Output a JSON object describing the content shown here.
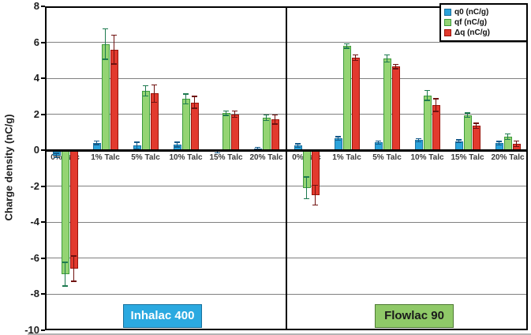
{
  "chart_data": {
    "type": "bar",
    "title": "",
    "ylabel": "Charge density (nC/g)",
    "ylim": [
      -10,
      8
    ],
    "yticks": [
      8,
      6,
      4,
      2,
      0,
      -2,
      -4,
      -6,
      -8,
      -10
    ],
    "grid": true,
    "legend_position": "top-right-inside",
    "categories": [
      "0% Talc",
      "1% Talc",
      "5% Talc",
      "10% Talc",
      "15% Talc",
      "20% Talc"
    ],
    "series_meta": [
      {
        "key": "q0",
        "name": "q0 (nC/g)",
        "color": "#2BA3DB",
        "border_color": "#1A6F9E",
        "error_color": "#155A8A"
      },
      {
        "key": "qf",
        "name": "qf (nC/g)",
        "color": "#94D473",
        "border_color": "#3E9B3C",
        "error_color": "#1E7A50"
      },
      {
        "key": "dq",
        "name": "Δq (nC/g)",
        "color": "#E23A2E",
        "border_color": "#9A1309",
        "error_color": "#701210"
      }
    ],
    "panels": [
      {
        "key": "inhalac-400",
        "label": "Inhalac 400",
        "label_bg": "#2BA9E0",
        "label_border": "#17709C",
        "label_text_color": "#FFFFFF",
        "series": [
          {
            "name": "q0 (nC/g)",
            "values": [
              -0.3,
              0.4,
              0.25,
              0.3,
              -0.1,
              0.1
            ],
            "errors": [
              0.12,
              0.1,
              0.2,
              0.13,
              0.05,
              0.05
            ]
          },
          {
            "name": "qf (nC/g)",
            "values": [
              -6.9,
              5.9,
              3.3,
              2.85,
              2.05,
              1.8
            ],
            "errors": [
              0.65,
              0.85,
              0.28,
              0.27,
              0.12,
              0.16
            ]
          },
          {
            "name": "Δq (nC/g)",
            "values": [
              -6.6,
              5.6,
              3.15,
              2.65,
              2.0,
              1.7
            ],
            "errors": [
              0.7,
              0.8,
              0.48,
              0.33,
              0.18,
              0.25
            ]
          }
        ]
      },
      {
        "key": "flowlac-90",
        "label": "Flowlac 90",
        "label_bg": "#8FC968",
        "label_border": "#4E7A33",
        "label_text_color": "#1A1A1A",
        "series": [
          {
            "name": "q0 (nC/g)",
            "values": [
              0.25,
              0.65,
              0.42,
              0.55,
              0.5,
              0.38
            ],
            "errors": [
              0.1,
              0.1,
              0.08,
              0.08,
              0.07,
              0.1
            ]
          },
          {
            "name": "qf (nC/g)",
            "values": [
              -2.1,
              5.8,
              5.1,
              3.05,
              1.95,
              0.75
            ],
            "errors": [
              0.6,
              0.12,
              0.2,
              0.27,
              0.12,
              0.15
            ]
          },
          {
            "name": "Δq (nC/g)",
            "values": [
              -2.5,
              5.15,
              4.65,
              2.5,
              1.35,
              0.35
            ],
            "errors": [
              0.55,
              0.15,
              0.12,
              0.35,
              0.15,
              0.15
            ]
          }
        ]
      }
    ],
    "colors": {
      "gridline": "#808080",
      "axis": "#000000",
      "background": "#FFFFFF"
    }
  }
}
